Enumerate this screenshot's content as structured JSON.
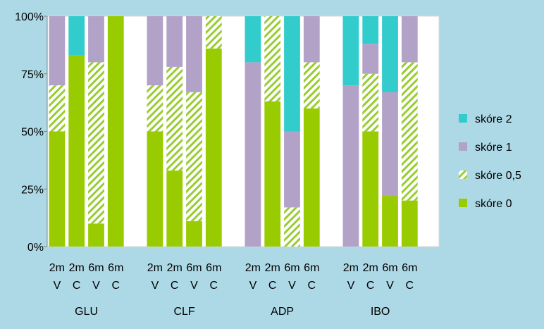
{
  "colors": {
    "background": "#add8e6",
    "plot_area": "#ffffff",
    "skore2": "#33cccc",
    "skore1": "#b3a2c7",
    "skore05_stripe": "#99cc33",
    "skore0": "#99cc00"
  },
  "chart_data": {
    "type": "bar",
    "stacked": "percent",
    "yticks": [
      "0%",
      "25%",
      "50%",
      "75%",
      "100%"
    ],
    "ylim": [
      0,
      100
    ],
    "grid": false,
    "legend_position": "right",
    "groups": [
      {
        "name": "GLU",
        "bars": [
          {
            "top": "2m",
            "bottom": "V",
            "values": {
              "skore0": 50,
              "skore05": 20,
              "skore1": 30,
              "skore2": 0
            }
          },
          {
            "top": "2m",
            "bottom": "C",
            "values": {
              "skore0": 83,
              "skore05": 0,
              "skore1": 0,
              "skore2": 17
            }
          },
          {
            "top": "6m",
            "bottom": "V",
            "values": {
              "skore0": 10,
              "skore05": 70,
              "skore1": 20,
              "skore2": 0
            }
          },
          {
            "top": "6m",
            "bottom": "C",
            "values": {
              "skore0": 100,
              "skore05": 0,
              "skore1": 0,
              "skore2": 0
            }
          }
        ]
      },
      {
        "name": "CLF",
        "bars": [
          {
            "top": "2m",
            "bottom": "V",
            "values": {
              "skore0": 50,
              "skore05": 20,
              "skore1": 30,
              "skore2": 0
            }
          },
          {
            "top": "2m",
            "bottom": "C",
            "values": {
              "skore0": 33,
              "skore05": 45,
              "skore1": 22,
              "skore2": 0
            }
          },
          {
            "top": "6m",
            "bottom": "V",
            "values": {
              "skore0": 11,
              "skore05": 56,
              "skore1": 33,
              "skore2": 0
            }
          },
          {
            "top": "6m",
            "bottom": "C",
            "values": {
              "skore0": 86,
              "skore05": 14,
              "skore1": 0,
              "skore2": 0
            }
          }
        ]
      },
      {
        "name": "ADP",
        "bars": [
          {
            "top": "2m",
            "bottom": "V",
            "values": {
              "skore0": 0,
              "skore05": 0,
              "skore1": 80,
              "skore2": 20
            }
          },
          {
            "top": "2m",
            "bottom": "C",
            "values": {
              "skore0": 63,
              "skore05": 37,
              "skore1": 0,
              "skore2": 0
            }
          },
          {
            "top": "6m",
            "bottom": "V",
            "values": {
              "skore0": 0,
              "skore05": 17,
              "skore1": 33,
              "skore2": 50
            }
          },
          {
            "top": "6m",
            "bottom": "C",
            "values": {
              "skore0": 60,
              "skore05": 20,
              "skore1": 20,
              "skore2": 0
            }
          }
        ]
      },
      {
        "name": "IBO",
        "bars": [
          {
            "top": "2m",
            "bottom": "V",
            "values": {
              "skore0": 0,
              "skore05": 0,
              "skore1": 70,
              "skore2": 30
            }
          },
          {
            "top": "2m",
            "bottom": "C",
            "values": {
              "skore0": 50,
              "skore05": 25,
              "skore1": 13,
              "skore2": 12
            }
          },
          {
            "top": "6m",
            "bottom": "V",
            "values": {
              "skore0": 22,
              "skore05": 0,
              "skore1": 45,
              "skore2": 33
            }
          },
          {
            "top": "6m",
            "bottom": "C",
            "values": {
              "skore0": 20,
              "skore05": 60,
              "skore1": 20,
              "skore2": 0
            }
          }
        ]
      }
    ],
    "series_order": [
      "skore0",
      "skore05",
      "skore1",
      "skore2"
    ],
    "legend": [
      {
        "key": "skore2",
        "label": "skóre 2"
      },
      {
        "key": "skore1",
        "label": "skóre 1"
      },
      {
        "key": "skore05",
        "label": "skóre 0,5"
      },
      {
        "key": "skore0",
        "label": "skóre 0"
      }
    ]
  }
}
